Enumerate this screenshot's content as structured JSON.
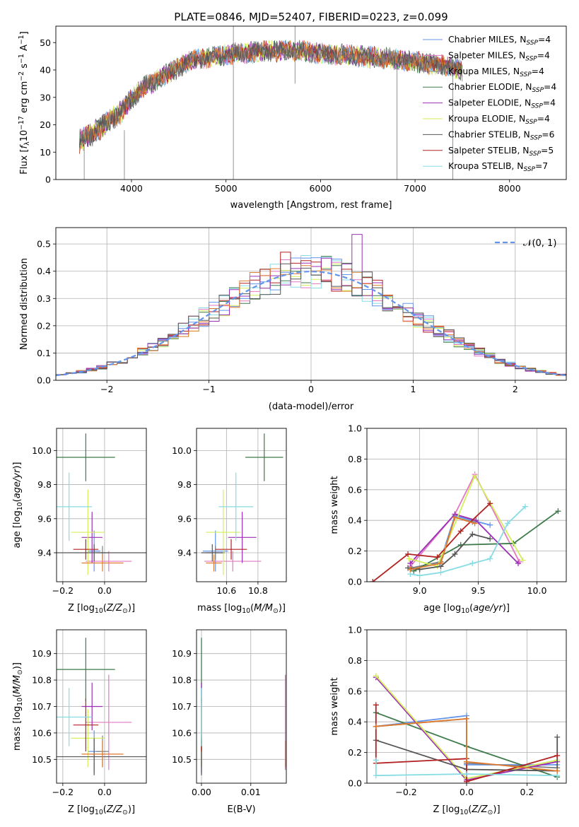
{
  "figure_title": "PLATE=0846, MJD=52407, FIBERID=0223, z=0.099",
  "colors": {
    "chabrier_miles": "#6495ed",
    "salpeter_miles": "#e377c2",
    "kroupa_miles": "#7f7f7f",
    "chabrier_elodie": "#3e7a4a",
    "salpeter_elodie": "#9b30b5",
    "kroupa_elodie": "#d4ef5a",
    "chabrier_stelib": "#555555",
    "salpeter_stelib": "#b22222",
    "kroupa_stelib": "#86dce3",
    "orange_extra": "#e07b30",
    "normal_curve": "#6495ed"
  },
  "chart_data": [
    {
      "id": "spectrum",
      "type": "line",
      "title": "PLATE=0846, MJD=52407, FIBERID=0223, z=0.099",
      "xlabel": "wavelength [Angstrom, rest frame]",
      "ylabel_parts": [
        "Flux [f",
        "λ",
        "10",
        "−17",
        " erg cm",
        "−2",
        " s",
        "−1",
        " A",
        "−1",
        "]"
      ],
      "xlim": [
        3200,
        8600
      ],
      "ylim": [
        0,
        56
      ],
      "xticks": [
        4000,
        5000,
        6000,
        7000,
        8000
      ],
      "yticks": [
        0,
        10,
        20,
        30,
        40,
        50
      ],
      "grid": false,
      "legend_position": "right",
      "legend": [
        {
          "base": "Chabrier MILES, N",
          "sub": "SSP",
          "tail": "=4",
          "color_key": "chabrier_miles"
        },
        {
          "base": "Salpeter MILES, N",
          "sub": "SSP",
          "tail": "=4",
          "color_key": "salpeter_miles"
        },
        {
          "base": "Kroupa MILES, N",
          "sub": "SSP",
          "tail": "=4",
          "color_key": "kroupa_miles"
        },
        {
          "base": "Chabrier ELODIE, N",
          "sub": "SSP",
          "tail": "=4",
          "color_key": "chabrier_elodie"
        },
        {
          "base": "Salpeter ELODIE, N",
          "sub": "SSP",
          "tail": "=4",
          "color_key": "salpeter_elodie"
        },
        {
          "base": "Kroupa ELODIE, N",
          "sub": "SSP",
          "tail": "=4",
          "color_key": "kroupa_elodie"
        },
        {
          "base": "Chabrier STELIB, N",
          "sub": "SSP",
          "tail": "=6",
          "color_key": "chabrier_stelib"
        },
        {
          "base": "Salpeter STELIB, N",
          "sub": "SSP",
          "tail": "=5",
          "color_key": "salpeter_stelib"
        },
        {
          "base": "Kroupa STELIB, N",
          "sub": "SSP",
          "tail": "=7",
          "color_key": "kroupa_stelib"
        }
      ],
      "continuum": [
        [
          3450,
          14
        ],
        [
          3600,
          17
        ],
        [
          3750,
          21
        ],
        [
          3900,
          25
        ],
        [
          4000,
          29
        ],
        [
          4100,
          33
        ],
        [
          4200,
          35
        ],
        [
          4300,
          37
        ],
        [
          4400,
          39
        ],
        [
          4500,
          41
        ],
        [
          4600,
          43
        ],
        [
          4700,
          44
        ],
        [
          4800,
          44.5
        ],
        [
          4900,
          45
        ],
        [
          5000,
          45.5
        ],
        [
          5100,
          46
        ],
        [
          5200,
          46
        ],
        [
          5300,
          46.5
        ],
        [
          5400,
          47
        ],
        [
          5600,
          47
        ],
        [
          5800,
          47
        ],
        [
          6000,
          46
        ],
        [
          6200,
          45.5
        ],
        [
          6400,
          45
        ],
        [
          6600,
          44.5
        ],
        [
          6800,
          44
        ],
        [
          7000,
          43
        ],
        [
          7200,
          42
        ],
        [
          7400,
          41
        ],
        [
          7500,
          40
        ]
      ],
      "spikes": [
        [
          5078,
          0,
          56
        ],
        [
          5730,
          35,
          56
        ],
        [
          6810,
          0,
          45
        ],
        [
          3925,
          0,
          18
        ],
        [
          3500,
          0,
          14
        ],
        [
          7400,
          0,
          43
        ]
      ]
    },
    {
      "id": "residuals",
      "type": "histogram",
      "xlabel": "(data-model)/error",
      "ylabel": "Normed distribution",
      "xlim": [
        -2.5,
        2.5
      ],
      "ylim": [
        0,
        0.56
      ],
      "xticks": [
        -2,
        -1,
        0,
        1,
        2
      ],
      "yticks": [
        0.0,
        0.1,
        0.2,
        0.3,
        0.4,
        0.5
      ],
      "grid": true,
      "legend": "𝒩(0, 1)",
      "legend_position": "upper right",
      "bin_width": 0.1
    },
    {
      "id": "age_vs_Z",
      "type": "scatter",
      "xlabel": "Z [log10(Z/Z☉)]",
      "ylabel": "age [log10(age/yr)]",
      "xlim": [
        -0.23,
        0.2
      ],
      "ylim": [
        9.23,
        10.13
      ],
      "xticks": [
        -0.2,
        0.0
      ],
      "yticks": [
        9.4,
        9.6,
        9.8,
        10.0
      ],
      "grid": true
    },
    {
      "id": "age_vs_mass",
      "type": "scatter",
      "xlabel": "mass [log10(M/M☉)]",
      "ylabel": "",
      "xlim": [
        10.41,
        10.98
      ],
      "ylim": [
        9.23,
        10.13
      ],
      "xticks": [
        10.6,
        10.8
      ],
      "yticks": [
        9.4,
        9.6,
        9.8,
        10.0
      ],
      "grid": true
    },
    {
      "id": "massweight_vs_age",
      "type": "line",
      "xlabel": "age [log10(age/yr)]",
      "ylabel": "mass weight",
      "xlim": [
        8.55,
        10.25
      ],
      "ylim": [
        0,
        1
      ],
      "xticks": [
        9.0,
        9.5,
        10.0
      ],
      "yticks": [
        0.0,
        0.2,
        0.4,
        0.6,
        0.8,
        1.0
      ],
      "grid": true
    },
    {
      "id": "mass_vs_Z",
      "type": "scatter",
      "xlabel": "Z [log10(Z/Z☉)]",
      "ylabel": "mass [log10(M/M☉)]",
      "xlim": [
        -0.23,
        0.2
      ],
      "ylim": [
        10.41,
        10.99
      ],
      "xticks": [
        -0.2,
        0.0
      ],
      "yticks": [
        10.5,
        10.6,
        10.7,
        10.8,
        10.9
      ],
      "grid": true
    },
    {
      "id": "mass_vs_ebv",
      "type": "scatter",
      "xlabel": "E(B-V)",
      "ylabel": "",
      "xlim": [
        -0.001,
        0.0172
      ],
      "ylim": [
        10.41,
        10.99
      ],
      "xticks": [
        0.0,
        0.01
      ],
      "xtick_labels": [
        "0.00",
        "0.01"
      ],
      "yticks": [
        10.5,
        10.6,
        10.7,
        10.8,
        10.9
      ],
      "grid": true
    },
    {
      "id": "massweight_vs_Z",
      "type": "line",
      "xlabel": "Z [log10(Z/Z☉)]",
      "ylabel": "mass weight",
      "xlim": [
        -0.33,
        0.33
      ],
      "ylim": [
        0,
        1
      ],
      "xticks": [
        -0.2,
        0.0,
        0.2
      ],
      "yticks": [
        0.0,
        0.2,
        0.4,
        0.6,
        0.8,
        1.0
      ],
      "grid": true
    }
  ],
  "model_points": [
    {
      "color_key": "chabrier_miles",
      "Z": -0.05,
      "Zerr": 0.03,
      "age": 9.41,
      "ageErr": 0.12,
      "mass": 10.53,
      "massErr": 0.08,
      "ebv": 0.0
    },
    {
      "color_key": "salpeter_miles",
      "Z": 0.02,
      "Zerr": 0.11,
      "age": 9.35,
      "ageErr": 0.06,
      "mass": 10.64,
      "massErr": 0.18,
      "ebv": 0.017
    },
    {
      "color_key": "kroupa_miles",
      "Z": -0.01,
      "Zerr": 0.03,
      "age": 9.4,
      "ageErr": 0.04,
      "mass": 10.53,
      "massErr": 0.06,
      "ebv": 0.0
    },
    {
      "color_key": "chabrier_elodie",
      "Z": -0.09,
      "Zerr": 0.14,
      "age": 9.96,
      "ageErr": 0.14,
      "mass": 10.84,
      "massErr": 0.12,
      "ebv": 0.0
    },
    {
      "color_key": "salpeter_elodie",
      "Z": -0.06,
      "Zerr": 0.05,
      "age": 9.49,
      "ageErr": 0.15,
      "mass": 10.7,
      "massErr": 0.09,
      "ebv": 0.0
    },
    {
      "color_key": "kroupa_elodie",
      "Z": -0.08,
      "Zerr": 0.08,
      "age": 9.52,
      "ageErr": 0.25,
      "mass": 10.58,
      "massErr": 0.11,
      "ebv": 0.0
    },
    {
      "color_key": "chabrier_stelib",
      "Z": -0.05,
      "Zerr": 0.28,
      "age": 9.4,
      "ageErr": 0.05,
      "mass": 10.51,
      "massErr": 0.07,
      "ebv": 0.0
    },
    {
      "color_key": "salpeter_stelib",
      "Z": -0.09,
      "Zerr": 0.06,
      "age": 9.42,
      "ageErr": 0.06,
      "mass": 10.63,
      "massErr": 0.1,
      "ebv": 0.0
    },
    {
      "color_key": "kroupa_stelib",
      "Z": -0.17,
      "Zerr": 0.11,
      "age": 9.67,
      "ageErr": 0.2,
      "mass": 10.66,
      "massErr": 0.11,
      "ebv": 0.0
    },
    {
      "color_key": "orange_extra",
      "Z": -0.01,
      "Zerr": 0.1,
      "age": 9.34,
      "ageErr": 0.05,
      "mass": 10.52,
      "massErr": 0.05,
      "ebv": 0.017
    }
  ],
  "weight_series_age": [
    {
      "color_key": "chabrier_miles",
      "pts": [
        [
          8.92,
          0.08
        ],
        [
          9.17,
          0.12
        ],
        [
          9.3,
          0.43
        ],
        [
          9.6,
          0.37
        ]
      ]
    },
    {
      "color_key": "salpeter_miles",
      "pts": [
        [
          8.92,
          0.1
        ],
        [
          9.3,
          0.44
        ],
        [
          9.47,
          0.7
        ],
        [
          9.85,
          0.13
        ]
      ]
    },
    {
      "color_key": "kroupa_miles",
      "pts": [
        [
          8.93,
          0.09
        ],
        [
          9.18,
          0.13
        ],
        [
          9.3,
          0.42
        ],
        [
          9.45,
          0.39
        ]
      ]
    },
    {
      "color_key": "chabrier_elodie",
      "pts": [
        [
          8.95,
          0.07
        ],
        [
          9.35,
          0.24
        ],
        [
          9.8,
          0.25
        ],
        [
          10.18,
          0.46
        ]
      ]
    },
    {
      "color_key": "salpeter_elodie",
      "pts": [
        [
          8.92,
          0.12
        ],
        [
          9.3,
          0.44
        ],
        [
          9.48,
          0.4
        ],
        [
          9.84,
          0.12
        ]
      ]
    },
    {
      "color_key": "kroupa_elodie",
      "pts": [
        [
          8.91,
          0.15
        ],
        [
          9.15,
          0.1
        ],
        [
          9.47,
          0.69
        ],
        [
          9.88,
          0.14
        ]
      ]
    },
    {
      "color_key": "chabrier_stelib",
      "pts": [
        [
          8.9,
          0.09
        ],
        [
          9.0,
          0.08
        ],
        [
          9.18,
          0.1
        ],
        [
          9.3,
          0.18
        ],
        [
          9.45,
          0.31
        ],
        [
          9.6,
          0.28
        ]
      ]
    },
    {
      "color_key": "salpeter_stelib",
      "pts": [
        [
          8.6,
          0.0
        ],
        [
          8.9,
          0.18
        ],
        [
          9.15,
          0.16
        ],
        [
          9.35,
          0.33
        ],
        [
          9.6,
          0.51
        ]
      ]
    },
    {
      "color_key": "kroupa_stelib",
      "pts": [
        [
          8.92,
          0.05
        ],
        [
          9.0,
          0.04
        ],
        [
          9.18,
          0.06
        ],
        [
          9.45,
          0.12
        ],
        [
          9.6,
          0.15
        ],
        [
          9.75,
          0.38
        ],
        [
          9.9,
          0.49
        ]
      ]
    },
    {
      "color_key": "orange_extra",
      "pts": [
        [
          8.92,
          0.08
        ],
        [
          9.18,
          0.12
        ],
        [
          9.3,
          0.42
        ],
        [
          9.47,
          0.38
        ]
      ]
    }
  ],
  "weight_series_Z": [
    {
      "color_key": "chabrier_miles",
      "pts": [
        [
          -0.3,
          0.37
        ],
        [
          0.0,
          0.44
        ],
        [
          0.0,
          0.12
        ],
        [
          0.3,
          0.12
        ]
      ]
    },
    {
      "color_key": "salpeter_miles",
      "pts": [
        [
          -0.3,
          0.69
        ],
        [
          0.0,
          0.03
        ],
        [
          0.3,
          0.14
        ]
      ]
    },
    {
      "color_key": "kroupa_miles",
      "pts": [
        [
          -0.3,
          0.37
        ],
        [
          0.0,
          0.42
        ],
        [
          0.0,
          0.13
        ],
        [
          0.3,
          0.1
        ]
      ]
    },
    {
      "color_key": "chabrier_elodie",
      "pts": [
        [
          -0.3,
          0.46
        ],
        [
          0.0,
          0.24
        ],
        [
          0.3,
          0.04
        ]
      ]
    },
    {
      "color_key": "salpeter_elodie",
      "pts": [
        [
          -0.3,
          0.69
        ],
        [
          0.0,
          0.02
        ],
        [
          0.3,
          0.14
        ]
      ]
    },
    {
      "color_key": "kroupa_elodie",
      "pts": [
        [
          -0.3,
          0.7
        ],
        [
          0.0,
          0.03
        ],
        [
          0.3,
          0.15
        ]
      ]
    },
    {
      "color_key": "chabrier_stelib",
      "pts": [
        [
          -0.3,
          0.28
        ],
        [
          0.0,
          0.09
        ],
        [
          0.3,
          0.08
        ],
        [
          0.3,
          0.3
        ]
      ]
    },
    {
      "color_key": "salpeter_stelib",
      "pts": [
        [
          -0.3,
          0.51
        ],
        [
          -0.3,
          0.13
        ],
        [
          0.0,
          0.16
        ],
        [
          0.0,
          0.01
        ],
        [
          0.3,
          0.18
        ]
      ]
    },
    {
      "color_key": "kroupa_stelib",
      "pts": [
        [
          -0.3,
          0.15
        ],
        [
          -0.3,
          0.05
        ],
        [
          0.0,
          0.06
        ],
        [
          0.3,
          0.05
        ]
      ]
    },
    {
      "color_key": "orange_extra",
      "pts": [
        [
          -0.3,
          0.37
        ],
        [
          0.0,
          0.42
        ],
        [
          0.0,
          0.14
        ],
        [
          0.3,
          0.08
        ]
      ]
    }
  ]
}
